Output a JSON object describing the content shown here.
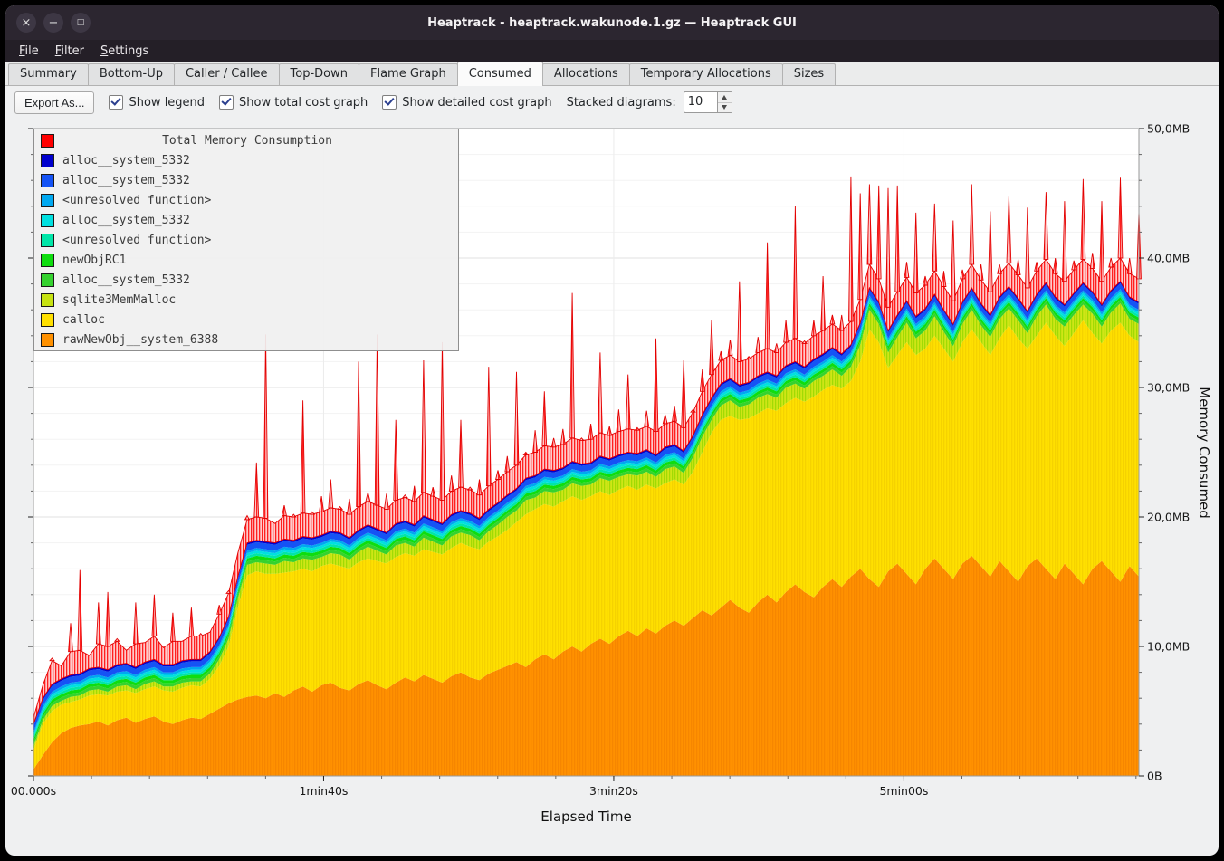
{
  "window": {
    "title": "Heaptrack - heaptrack.wakunode.1.gz — Heaptrack GUI",
    "buttons": [
      {
        "name": "close",
        "glyph": "×"
      },
      {
        "name": "minimize",
        "glyph": "−"
      },
      {
        "name": "maximize",
        "glyph": "□"
      }
    ]
  },
  "menu": [
    {
      "label": "File"
    },
    {
      "label": "Filter"
    },
    {
      "label": "Settings"
    }
  ],
  "tabs": [
    {
      "label": "Summary"
    },
    {
      "label": "Bottom-Up"
    },
    {
      "label": "Caller / Callee"
    },
    {
      "label": "Top-Down"
    },
    {
      "label": "Flame Graph"
    },
    {
      "label": "Consumed",
      "active": true
    },
    {
      "label": "Allocations"
    },
    {
      "label": "Temporary Allocations"
    },
    {
      "label": "Sizes"
    }
  ],
  "toolbar": {
    "export_label": "Export As...",
    "checkboxes": [
      {
        "label": "Show legend",
        "checked": true
      },
      {
        "label": "Show total cost graph",
        "checked": true
      },
      {
        "label": "Show detailed cost graph",
        "checked": true
      }
    ],
    "stacked_label": "Stacked diagrams:",
    "stacked_value": "10"
  },
  "chart_data": {
    "type": "area",
    "title": "Total Memory Consumption",
    "xlabel": "Elapsed Time",
    "ylabel": "Memory Consumed",
    "x_max_seconds": 381,
    "ylim_mb": [
      0,
      50
    ],
    "grid": true,
    "legend_position": "top-left",
    "x_ticks": [
      {
        "label": "00.000s",
        "seconds": 0
      },
      {
        "label": "1min40s",
        "seconds": 100
      },
      {
        "label": "3min20s",
        "seconds": 200
      },
      {
        "label": "5min00s",
        "seconds": 300
      }
    ],
    "y_ticks": [
      {
        "label": "0B",
        "mb": 0
      },
      {
        "label": "10,0MB",
        "mb": 10
      },
      {
        "label": "20,0MB",
        "mb": 20
      },
      {
        "label": "30,0MB",
        "mb": 30
      },
      {
        "label": "40,0MB",
        "mb": 40
      },
      {
        "label": "50,0MB",
        "mb": 50
      }
    ],
    "series": [
      {
        "name": "rawNewObj__system_6388",
        "color": "#ff9100",
        "pattern": "orangetex",
        "values": [
          0.5,
          1.6,
          2.6,
          3.3,
          3.7,
          3.9,
          4.0,
          4.2,
          3.9,
          4.3,
          4.5,
          4.1,
          4.4,
          4.6,
          4.2,
          4.0,
          4.3,
          4.5,
          4.4,
          4.8,
          5.2,
          5.6,
          5.9,
          6.1,
          6.2,
          6.0,
          6.4,
          6.1,
          6.6,
          6.9,
          6.5,
          7.0,
          7.2,
          6.8,
          6.6,
          7.1,
          7.4,
          7.0,
          6.7,
          7.2,
          7.6,
          7.3,
          7.8,
          7.5,
          7.2,
          7.7,
          8.0,
          7.6,
          7.4,
          7.9,
          8.2,
          8.5,
          8.8,
          8.4,
          9.0,
          9.4,
          9.0,
          9.6,
          10.0,
          9.6,
          10.2,
          10.6,
          10.2,
          10.8,
          11.2,
          10.8,
          11.4,
          11.0,
          11.6,
          12.0,
          11.6,
          12.2,
          12.8,
          12.4,
          13.0,
          13.6,
          13.0,
          12.6,
          13.4,
          14.0,
          13.4,
          14.2,
          14.8,
          14.2,
          13.8,
          14.6,
          15.2,
          14.6,
          15.4,
          16.0,
          15.2,
          14.6,
          15.8,
          16.4,
          15.6,
          14.8,
          16.0,
          16.8,
          16.0,
          15.2,
          16.4,
          17.0,
          16.2,
          15.4,
          16.6,
          15.8,
          15.0,
          16.2,
          16.8,
          16.0,
          15.2,
          16.4,
          15.6,
          14.8,
          16.0,
          16.6,
          15.8,
          15.0,
          16.2,
          15.4
        ]
      },
      {
        "name": "calloc",
        "color": "#ffe000",
        "pattern": "yellowtex",
        "values": [
          1.5,
          2.4,
          2.4,
          2.2,
          2.0,
          2.0,
          2.2,
          2.1,
          2.3,
          2.2,
          2.1,
          2.3,
          2.3,
          2.3,
          2.4,
          2.5,
          2.5,
          2.5,
          2.5,
          2.7,
          3.3,
          4.4,
          7.1,
          9.4,
          9.6,
          9.6,
          9.2,
          9.6,
          9.2,
          9.1,
          9.3,
          9.2,
          9.2,
          9.4,
          9.4,
          9.4,
          9.4,
          9.6,
          9.7,
          9.7,
          9.6,
          9.7,
          9.7,
          9.8,
          9.9,
          9.9,
          10.0,
          10.1,
          10.1,
          10.2,
          10.3,
          10.5,
          10.8,
          11.8,
          11.6,
          11.6,
          11.8,
          11.6,
          11.6,
          11.7,
          11.4,
          11.4,
          11.5,
          11.3,
          11.2,
          11.3,
          11.1,
          11.2,
          11.0,
          10.9,
          10.9,
          11.3,
          12.2,
          14.1,
          14.5,
          14.2,
          14.5,
          15.0,
          14.6,
          14.4,
          14.8,
          14.6,
          14.4,
          14.7,
          15.5,
          15.2,
          15.0,
          15.3,
          15.1,
          16.0,
          19.3,
          18.9,
          15.7,
          16.1,
          17.9,
          17.7,
          17.0,
          17.2,
          17.0,
          16.8,
          17.1,
          17.5,
          17.3,
          17.1,
          17.2,
          19.0,
          18.8,
          16.8,
          17.2,
          19.0,
          18.8,
          16.8,
          18.6,
          20.4,
          18.2,
          16.8,
          18.6,
          20.0,
          17.8,
          18.1
        ]
      },
      {
        "name": "sqlite3MemMalloc",
        "color": "#c6e211",
        "pattern": "sqltex",
        "values": [
          0.3,
          0.3,
          0.4,
          0.3,
          0.4,
          0.3,
          0.4,
          0.4,
          0.3,
          0.4,
          0.4,
          0.3,
          0.4,
          0.4,
          0.3,
          0.4,
          0.4,
          0.3,
          0.4,
          0.4,
          0.5,
          0.6,
          0.7,
          0.8,
          0.7,
          0.8,
          0.7,
          0.9,
          0.7,
          0.8,
          0.9,
          0.7,
          0.8,
          0.9,
          0.7,
          0.8,
          0.9,
          0.8,
          0.7,
          0.9,
          0.8,
          0.7,
          0.9,
          0.8,
          0.7,
          0.9,
          0.8,
          0.9,
          0.7,
          0.8,
          0.9,
          1.0,
          0.9,
          1.1,
          0.9,
          1.0,
          1.1,
          0.9,
          1.0,
          1.1,
          0.9,
          1.0,
          1.1,
          1.0,
          0.9,
          1.1,
          1.0,
          0.9,
          1.1,
          1.0,
          0.9,
          1.1,
          1.2,
          1.0,
          1.1,
          1.2,
          1.0,
          1.1,
          1.2,
          1.1,
          1.0,
          1.2,
          1.1,
          1.0,
          1.2,
          1.1,
          1.2,
          1.0,
          1.1,
          1.3,
          1.5,
          1.4,
          1.2,
          1.4,
          1.5,
          1.3,
          1.4,
          1.5,
          1.3,
          1.2,
          1.4,
          1.5,
          1.3,
          1.4,
          1.5,
          1.3,
          1.4,
          1.2,
          1.5,
          1.4,
          1.3,
          1.5,
          1.4,
          1.2,
          1.5,
          1.3,
          1.4,
          1.5,
          1.3,
          1.4
        ]
      },
      {
        "name": "alloc__system_5332",
        "color": "#35d22f",
        "constant": 0.25
      },
      {
        "name": "newObjRC1",
        "color": "#0fdd0f",
        "constant": 0.25
      },
      {
        "name": "<unresolved function>",
        "color": "#00e6a8",
        "constant": 0.2
      },
      {
        "name": "alloc__system_5332",
        "color": "#00e0e0",
        "constant": 0.2
      },
      {
        "name": "<unresolved function>",
        "color": "#00a8f0",
        "constant": 0.2
      },
      {
        "name": "alloc__system_5332",
        "color": "#1553f5",
        "constant": 0.45
      },
      {
        "name": "alloc__system_5332",
        "color": "#0000cd",
        "constant": 0.15
      }
    ],
    "total": {
      "name": "Total Memory Consumption",
      "color": "#ff0000",
      "band_mb": 1.8,
      "values": [
        0.5,
        1.0,
        2.0,
        1.0,
        4.0,
        8.0,
        1.0,
        5.0,
        6.0,
        2.0,
        1.0,
        5.0,
        1.5,
        5.0,
        1.3,
        4.0,
        1.5,
        4.0,
        2.0,
        1.5,
        2.5,
        2.0,
        1.8,
        2.1,
        6.0,
        16.0,
        1.5,
        2.6,
        2.0,
        10.5,
        2.0,
        3.0,
        4.0,
        2.0,
        3.0,
        13.0,
        2.5,
        15.0,
        3.0,
        8.0,
        2.0,
        3.0,
        12.0,
        2.5,
        14.0,
        3.0,
        7.0,
        2.0,
        3.0,
        11.0,
        2.5,
        3.0,
        9.0,
        2.0,
        3.5,
        6.0,
        2.5,
        3.0,
        13.0,
        2.0,
        3.0,
        8.0,
        2.5,
        3.5,
        6.0,
        2.0,
        3.0,
        9.0,
        2.5,
        3.0,
        7.0,
        2.0,
        3.5,
        6.0,
        2.5,
        3.0,
        8.0,
        2.0,
        3.0,
        10.0,
        2.5,
        3.5,
        12.0,
        2.0,
        3.0,
        6.0,
        2.5,
        3.0,
        13.0,
        10.0,
        8.0,
        9.0,
        11.0,
        10.0,
        3.0,
        8.0,
        2.5,
        7.0,
        3.0,
        8.0,
        2.5,
        8.0,
        3.0,
        8.0,
        2.5,
        7.0,
        3.0,
        8.0,
        2.5,
        7.0,
        3.0,
        8.0,
        2.5,
        8.0,
        3.0,
        8.0,
        2.5,
        8.0,
        3.0,
        7.0
      ]
    }
  }
}
